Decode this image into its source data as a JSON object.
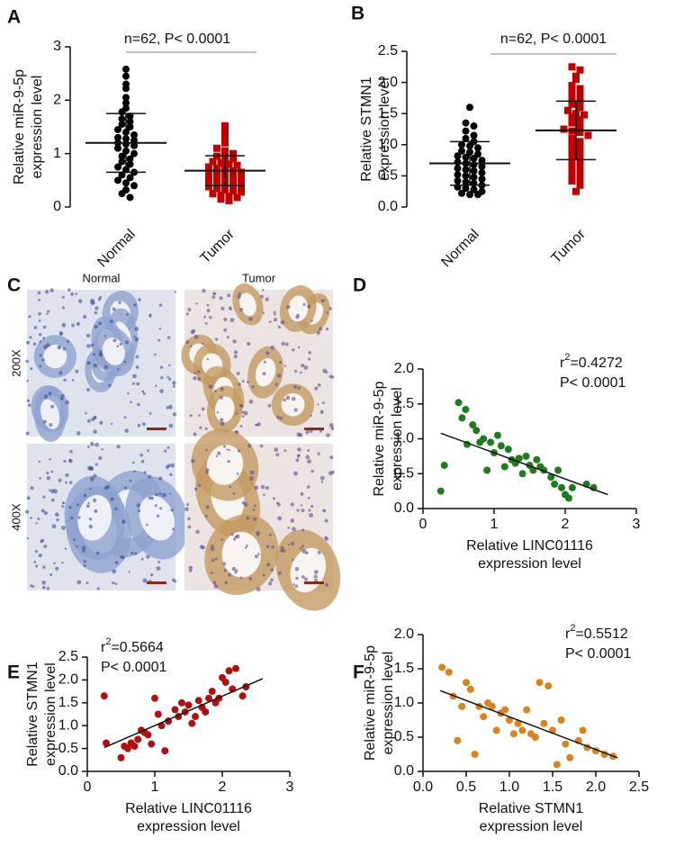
{
  "chart_data": [
    {
      "type": "dotplot",
      "panel": "A",
      "ylabel": [
        "Relative miR-9-5p",
        "expression level"
      ],
      "annotation": "n=62, P< 0.0001",
      "ylim": [
        0,
        3
      ],
      "yticks": [
        0,
        1,
        2,
        3
      ],
      "series": [
        {
          "name": "Normal",
          "color": "#000000",
          "marker": "circle",
          "mean": 1.2,
          "sd": 0.55,
          "values": [
            2.58,
            2.45,
            2.3,
            2.22,
            2.05,
            1.95,
            1.85,
            1.78,
            1.7,
            1.65,
            1.6,
            1.55,
            1.5,
            1.45,
            1.4,
            1.35,
            1.3,
            1.28,
            1.25,
            1.2,
            1.18,
            1.15,
            1.1,
            1.05,
            1.0,
            0.95,
            0.9,
            0.85,
            0.8,
            0.75,
            0.7,
            0.65,
            0.6,
            0.55,
            0.5,
            0.45,
            0.4,
            0.32,
            0.25,
            0.18
          ]
        },
        {
          "name": "Tumor",
          "color": "#c00000",
          "marker": "square",
          "mean": 0.68,
          "sd": 0.28,
          "values": [
            1.52,
            1.4,
            1.3,
            1.2,
            1.1,
            1.05,
            1.0,
            0.95,
            0.92,
            0.9,
            0.85,
            0.82,
            0.8,
            0.78,
            0.75,
            0.72,
            0.7,
            0.68,
            0.65,
            0.62,
            0.6,
            0.58,
            0.55,
            0.52,
            0.5,
            0.48,
            0.45,
            0.42,
            0.4,
            0.38,
            0.35,
            0.32,
            0.3,
            0.28,
            0.25,
            0.22,
            0.2,
            0.18,
            0.15,
            0.12
          ]
        }
      ]
    },
    {
      "type": "dotplot",
      "panel": "B",
      "ylabel": [
        "Relative STMN1",
        "expression  level"
      ],
      "annotation": "n=62, P< 0.0001",
      "ylim": [
        0,
        2.5
      ],
      "yticks": [
        {
          "value": 0,
          "label": "0.0"
        },
        0.5,
        {
          "value": 1,
          "label": "1.0"
        },
        1.5,
        {
          "value": 2,
          "label": "2.0"
        },
        2.5
      ],
      "series": [
        {
          "name": "Normal",
          "color": "#000000",
          "marker": "circle",
          "mean": 0.7,
          "sd": 0.35,
          "values": [
            1.6,
            1.35,
            1.3,
            1.22,
            1.15,
            1.1,
            1.05,
            1.0,
            0.98,
            0.95,
            0.9,
            0.88,
            0.85,
            0.82,
            0.8,
            0.78,
            0.75,
            0.72,
            0.7,
            0.68,
            0.65,
            0.62,
            0.6,
            0.58,
            0.55,
            0.52,
            0.5,
            0.48,
            0.45,
            0.42,
            0.4,
            0.38,
            0.35,
            0.32,
            0.3,
            0.28,
            0.25,
            0.22,
            0.2,
            0.2
          ]
        },
        {
          "name": "Tumor",
          "color": "#c00000",
          "marker": "square",
          "mean": 1.23,
          "sd": 0.47,
          "values": [
            2.25,
            2.2,
            2.1,
            2.05,
            1.95,
            1.9,
            1.85,
            1.8,
            1.75,
            1.7,
            1.65,
            1.6,
            1.55,
            1.5,
            1.48,
            1.45,
            1.4,
            1.35,
            1.3,
            1.25,
            1.22,
            1.2,
            1.15,
            1.1,
            1.05,
            1.0,
            0.95,
            0.9,
            0.85,
            0.8,
            0.75,
            0.7,
            0.65,
            0.6,
            0.55,
            0.5,
            0.45,
            0.42,
            0.35,
            0.25
          ]
        }
      ]
    },
    {
      "type": "image",
      "panel": "C",
      "columns": [
        "Normal",
        "Tumor"
      ],
      "rows": [
        "200X",
        "400X"
      ]
    },
    {
      "type": "scatter",
      "panel": "D",
      "color": "#1e7b1e",
      "xlabel": [
        "Relative LINC01116",
        "expression level"
      ],
      "ylabel": [
        "Relative miR-9-5p",
        "expression level"
      ],
      "stat_prefix": "r",
      "stat_sup": "2",
      "stat": "=0.4272",
      "p_text": "P< 0.0001",
      "xlim": [
        0,
        3
      ],
      "xticks": [
        0,
        1,
        2,
        3
      ],
      "ylim": [
        0,
        2
      ],
      "yticks": [
        {
          "value": 0,
          "label": "0.0"
        },
        0.5,
        {
          "value": 1,
          "label": "1.0"
        },
        1.5,
        {
          "value": 2,
          "label": "2.0"
        }
      ],
      "fit": {
        "x": [
          0.25,
          2.6
        ],
        "y": [
          1.08,
          0.2
        ]
      },
      "x": [
        0.25,
        0.3,
        0.5,
        0.55,
        0.6,
        0.62,
        0.7,
        0.75,
        0.8,
        0.85,
        0.9,
        0.95,
        1.0,
        1.05,
        1.1,
        1.15,
        1.2,
        1.25,
        1.3,
        1.35,
        1.4,
        1.45,
        1.5,
        1.55,
        1.6,
        1.65,
        1.7,
        1.8,
        1.85,
        1.9,
        1.95,
        2.0,
        2.05,
        2.1,
        2.3,
        2.4
      ],
      "y": [
        0.25,
        0.62,
        1.52,
        1.3,
        1.42,
        0.92,
        1.2,
        1.12,
        0.95,
        1.0,
        0.55,
        0.95,
        0.8,
        1.05,
        0.9,
        0.6,
        0.85,
        0.7,
        0.65,
        0.72,
        0.5,
        0.75,
        0.62,
        0.55,
        0.7,
        0.6,
        0.55,
        0.45,
        0.35,
        0.55,
        0.3,
        0.2,
        0.15,
        0.3,
        0.35,
        0.3
      ]
    },
    {
      "type": "scatter",
      "panel": "E",
      "color": "#b01010",
      "xlabel": [
        "Relative LINC01116",
        "expression level"
      ],
      "ylabel": [
        "Relative STMN1",
        "expression  level"
      ],
      "stat_prefix": "r",
      "stat_sup": "2",
      "stat": "=0.5664",
      "p_text": "P< 0.0001",
      "xlim": [
        0,
        3
      ],
      "xticks": [
        0,
        1,
        2,
        3
      ],
      "ylim": [
        0,
        2.5
      ],
      "yticks": [
        {
          "value": 0,
          "label": "0.0"
        },
        0.5,
        {
          "value": 1,
          "label": "1.0"
        },
        1.5,
        {
          "value": 2,
          "label": "2.0"
        },
        2.5
      ],
      "fit": {
        "x": [
          0.25,
          2.6
        ],
        "y": [
          0.52,
          2.03
        ]
      },
      "x": [
        0.25,
        0.28,
        0.5,
        0.55,
        0.6,
        0.65,
        0.7,
        0.75,
        0.8,
        0.85,
        0.9,
        0.95,
        1.0,
        1.05,
        1.1,
        1.15,
        1.2,
        1.3,
        1.35,
        1.4,
        1.45,
        1.5,
        1.55,
        1.6,
        1.65,
        1.7,
        1.75,
        1.8,
        1.85,
        1.9,
        1.95,
        2.0,
        2.05,
        2.1,
        2.15,
        2.2,
        2.3,
        2.35
      ],
      "y": [
        1.65,
        0.62,
        0.3,
        0.55,
        0.5,
        0.62,
        0.55,
        0.7,
        0.9,
        0.85,
        0.8,
        0.6,
        1.6,
        1.25,
        1.0,
        0.45,
        1.1,
        1.35,
        1.2,
        1.5,
        1.3,
        1.45,
        1.05,
        1.2,
        1.55,
        1.4,
        1.3,
        1.6,
        1.75,
        1.5,
        1.6,
        2.05,
        1.95,
        2.2,
        1.8,
        2.25,
        1.65,
        1.85
      ]
    },
    {
      "type": "scatter",
      "panel": "F",
      "color": "#d9821e",
      "xlabel": [
        "Relative STMN1",
        "expression level"
      ],
      "ylabel": [
        "Relative miR-9-5p",
        "expression level"
      ],
      "stat_prefix": "r",
      "stat_sup": "2",
      "stat": "=0.5512",
      "p_text": "P< 0.0001",
      "xlim": [
        0,
        2.5
      ],
      "xticks": [
        {
          "value": 0,
          "label": "0.0"
        },
        0.5,
        {
          "value": 1,
          "label": "1.0"
        },
        1.5,
        {
          "value": 2,
          "label": "2.0"
        },
        2.5
      ],
      "ylim": [
        0,
        2
      ],
      "yticks": [
        {
          "value": 0,
          "label": "0.0"
        },
        0.5,
        {
          "value": 1,
          "label": "1.0"
        },
        1.5,
        {
          "value": 2,
          "label": "2.0"
        }
      ],
      "fit": {
        "x": [
          0.2,
          2.25
        ],
        "y": [
          1.18,
          0.2
        ]
      },
      "x": [
        0.22,
        0.3,
        0.35,
        0.4,
        0.45,
        0.5,
        0.55,
        0.6,
        0.65,
        0.7,
        0.75,
        0.8,
        0.85,
        0.9,
        0.95,
        1.0,
        1.05,
        1.1,
        1.15,
        1.2,
        1.25,
        1.3,
        1.35,
        1.4,
        1.45,
        1.5,
        1.55,
        1.6,
        1.65,
        1.7,
        1.8,
        1.85,
        1.9,
        2.0,
        2.1,
        2.2
      ],
      "y": [
        1.52,
        1.45,
        1.1,
        0.45,
        0.95,
        1.3,
        1.2,
        0.25,
        0.95,
        0.8,
        1.0,
        0.95,
        0.6,
        0.85,
        0.9,
        0.75,
        0.55,
        0.7,
        0.6,
        0.9,
        0.55,
        0.5,
        1.3,
        0.7,
        1.25,
        0.6,
        0.1,
        0.75,
        0.4,
        0.2,
        0.45,
        0.6,
        0.35,
        0.3,
        0.25,
        0.22
      ]
    }
  ]
}
